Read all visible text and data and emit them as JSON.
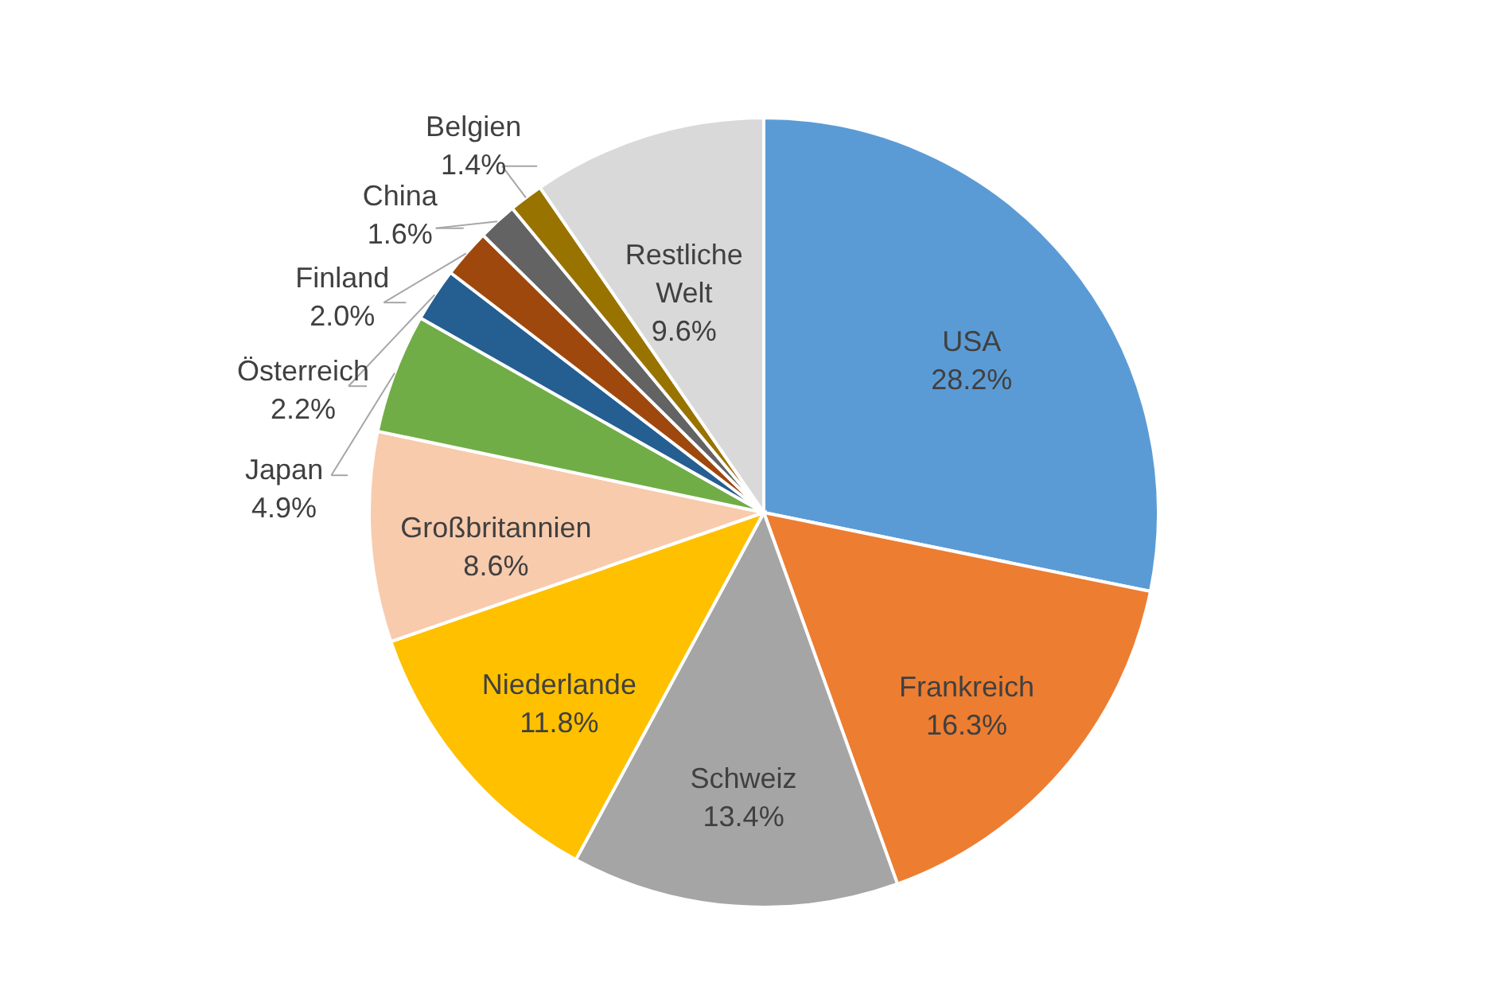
{
  "chart_data": {
    "type": "pie",
    "categories": [
      "USA",
      "Frankreich",
      "Schweiz",
      "Niederlande",
      "Großbritannien",
      "Japan",
      "Österreich",
      "Finland",
      "China",
      "Belgien",
      "Restliche Welt"
    ],
    "values": [
      28.2,
      16.3,
      13.4,
      11.8,
      8.6,
      4.9,
      2.2,
      2.0,
      1.6,
      1.4,
      9.6
    ],
    "value_labels": [
      "28.2%",
      "16.3%",
      "13.4%",
      "11.8%",
      "8.6%",
      "4.9%",
      "2.2%",
      "2.0%",
      "1.6%",
      "1.4%",
      "9.6%"
    ],
    "colors": [
      "#5b9bd5",
      "#ed7d31",
      "#a5a5a5",
      "#ffc000",
      "#f8cbad",
      "#70ad47",
      "#255e91",
      "#9e480e",
      "#636363",
      "#997300",
      "#d9d9d9"
    ]
  }
}
